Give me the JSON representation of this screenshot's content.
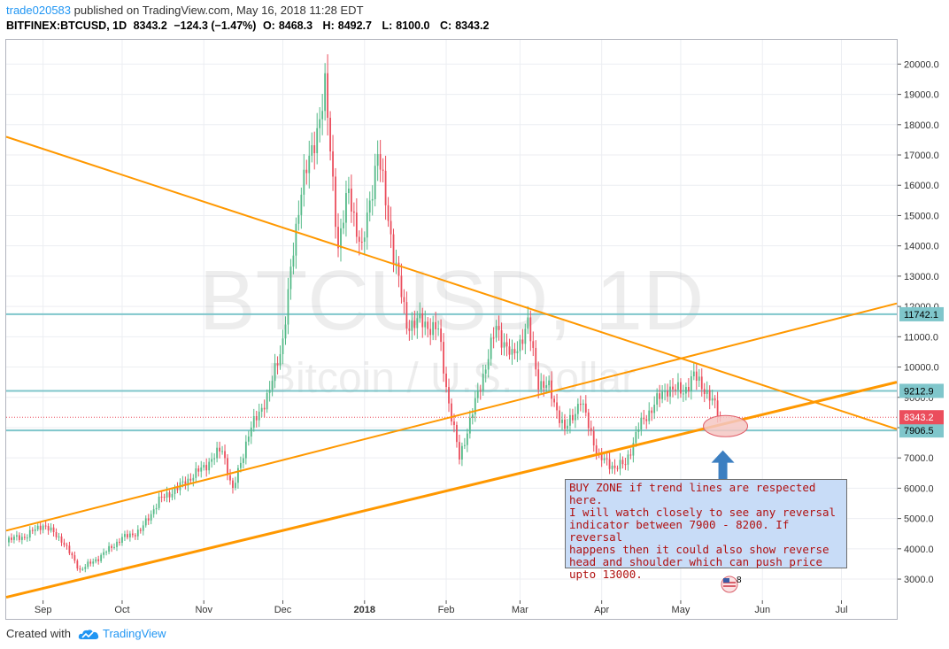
{
  "header": {
    "author": "trade020583",
    "published_text": " published on TradingView.com, May 16, 2018 11:28 EDT",
    "symbol": "BITFINEX:BTCUSD, 1D",
    "last": "8343.2",
    "change": "−124.3 (−1.47%)",
    "o_label": "O:",
    "o": "8468.3",
    "h_label": "H:",
    "h": "8492.7",
    "l_label": "L:",
    "l": "8100.0",
    "c_label": "C:",
    "c": "8343.2"
  },
  "watermark": {
    "line1": "BTCUSD, 1D",
    "line2": "Bitcoin / U.S. Dollar"
  },
  "annotation": {
    "text": "BUY ZONE if trend lines are respected here.\nI will watch closely to see any reversal\nindicator between 7900 - 8200. If reversal\nhappens then it could also show reverse\nhead and shoulder which can push price\nupto 13000."
  },
  "footer": {
    "created": "Created with",
    "brand": "TradingView"
  },
  "flag_badge": "8",
  "colors": {
    "up": "#53b987",
    "down": "#eb4d5c",
    "trend": "#ff9800",
    "level": "#7fc6cb",
    "price_tag": "#eb4d5c",
    "level_tag": "#7fc6cb",
    "ellipse_fill": "#f4c7c3",
    "ellipse_stroke": "#e0606b",
    "arrow": "#3c7fc1"
  },
  "chart_data": {
    "type": "candlestick",
    "y_axis": {
      "min": 2300,
      "max": 20800,
      "ticks": [
        3000,
        4000,
        5000,
        6000,
        7000,
        8000,
        9000,
        10000,
        11000,
        12000,
        13000,
        14000,
        15000,
        16000,
        17000,
        18000,
        19000,
        20000
      ],
      "tick_format": "0.0",
      "position": "right"
    },
    "x_axis": {
      "start": "2017-08-18",
      "end": "2018-07-22",
      "ticks": [
        {
          "date": "2017-09-01",
          "label": "Sep"
        },
        {
          "date": "2017-10-01",
          "label": "Oct"
        },
        {
          "date": "2017-11-01",
          "label": "Nov"
        },
        {
          "date": "2017-12-01",
          "label": "Dec"
        },
        {
          "date": "2018-01-01",
          "label": "2018",
          "bold": true
        },
        {
          "date": "2018-02-01",
          "label": "Feb"
        },
        {
          "date": "2018-03-01",
          "label": "Mar"
        },
        {
          "date": "2018-04-01",
          "label": "Apr"
        },
        {
          "date": "2018-05-01",
          "label": "May"
        },
        {
          "date": "2018-06-01",
          "label": "Jun"
        },
        {
          "date": "2018-07-01",
          "label": "Jul"
        }
      ]
    },
    "close_anchors": [
      [
        "2017-08-18",
        4300
      ],
      [
        "2017-08-25",
        4400
      ],
      [
        "2017-09-01",
        4800
      ],
      [
        "2017-09-08",
        4300
      ],
      [
        "2017-09-15",
        3300
      ],
      [
        "2017-09-22",
        3700
      ],
      [
        "2017-10-01",
        4350
      ],
      [
        "2017-10-08",
        4600
      ],
      [
        "2017-10-15",
        5600
      ],
      [
        "2017-10-22",
        6000
      ],
      [
        "2017-11-01",
        6700
      ],
      [
        "2017-11-08",
        7300
      ],
      [
        "2017-11-12",
        5900
      ],
      [
        "2017-11-18",
        7800
      ],
      [
        "2017-11-26",
        9200
      ],
      [
        "2017-12-01",
        10900
      ],
      [
        "2017-12-08",
        16000
      ],
      [
        "2017-12-12",
        17000
      ],
      [
        "2017-12-17",
        19200
      ],
      [
        "2017-12-22",
        14000
      ],
      [
        "2017-12-26",
        15800
      ],
      [
        "2017-12-31",
        13800
      ],
      [
        "2018-01-06",
        17100
      ],
      [
        "2018-01-12",
        13800
      ],
      [
        "2018-01-17",
        11400
      ],
      [
        "2018-01-22",
        11500
      ],
      [
        "2018-01-29",
        11200
      ],
      [
        "2018-02-02",
        8800
      ],
      [
        "2018-02-06",
        7000
      ],
      [
        "2018-02-12",
        8800
      ],
      [
        "2018-02-20",
        11300
      ],
      [
        "2018-02-26",
        10300
      ],
      [
        "2018-03-04",
        11400
      ],
      [
        "2018-03-08",
        9500
      ],
      [
        "2018-03-12",
        9300
      ],
      [
        "2018-03-18",
        7900
      ],
      [
        "2018-03-24",
        8900
      ],
      [
        "2018-03-31",
        7000
      ],
      [
        "2018-04-06",
        6700
      ],
      [
        "2018-04-10",
        6800
      ],
      [
        "2018-04-15",
        8000
      ],
      [
        "2018-04-22",
        8900
      ],
      [
        "2018-04-26",
        9300
      ],
      [
        "2018-05-02",
        9200
      ],
      [
        "2018-05-06",
        9700
      ],
      [
        "2018-05-10",
        9300
      ],
      [
        "2018-05-14",
        8700
      ],
      [
        "2018-05-16",
        8343
      ]
    ],
    "trend_lines": [
      {
        "name": "descending resistance",
        "from": [
          "2017-08-18",
          17600
        ],
        "to": [
          "2018-07-22",
          7950
        ],
        "width": 2
      },
      {
        "name": "upper ascending support",
        "from": [
          "2017-08-18",
          4600
        ],
        "to": [
          "2018-07-22",
          12100
        ],
        "width": 2
      },
      {
        "name": "lower ascending support",
        "from": [
          "2017-08-18",
          2400
        ],
        "to": [
          "2018-07-22",
          9500
        ],
        "width": 3
      }
    ],
    "horizontal_levels": [
      {
        "value": 11742.1,
        "label": "11742.1"
      },
      {
        "value": 9212.9,
        "label": "9212.9"
      },
      {
        "value": 7906.5,
        "label": "7906.5"
      }
    ],
    "last_price": {
      "value": 8343.2,
      "label": "8343.2"
    },
    "buy_zone": {
      "center": [
        "2018-05-18",
        8050
      ],
      "label": ""
    },
    "arrow": {
      "date": "2018-05-17",
      "from": 6300,
      "to": 7250
    }
  }
}
